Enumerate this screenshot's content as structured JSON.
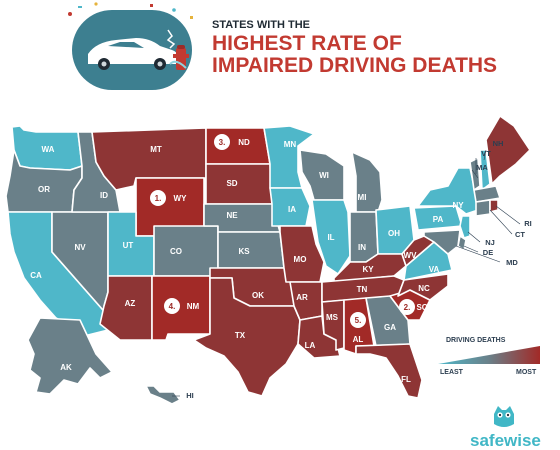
{
  "header": {
    "kicker": "STATES WITH THE",
    "title_line1": "HIGHEST RATE OF",
    "title_line2": "IMPAIRED DRIVING DEATHS"
  },
  "legend": {
    "title": "DRIVING DEATHS",
    "low": "LEAST",
    "high": "MOST",
    "low_color": "#4fb7c9",
    "high_color": "#a22a27"
  },
  "brand": {
    "name": "safewise"
  },
  "colors": {
    "teal": "#4fb7c9",
    "slate": "#6a8089",
    "maroon": "#8e3535",
    "red": "#a22a27",
    "title_red": "#c23a31"
  },
  "top5": [
    {
      "rank": "1.",
      "state": "WY"
    },
    {
      "rank": "2.",
      "state": "SC"
    },
    {
      "rank": "3.",
      "state": "ND"
    },
    {
      "rank": "4.",
      "state": "NM"
    },
    {
      "rank": "5.",
      "state": "AL"
    }
  ],
  "map_labels": {
    "WA": "WA",
    "OR": "OR",
    "CA": "CA",
    "NV": "NV",
    "ID": "ID",
    "MT": "MT",
    "WY": "WY",
    "UT": "UT",
    "CO": "CO",
    "AZ": "AZ",
    "NM": "NM",
    "ND": "ND",
    "SD": "SD",
    "NE": "NE",
    "KS": "KS",
    "OK": "OK",
    "TX": "TX",
    "MN": "MN",
    "IA": "IA",
    "MO": "MO",
    "AR": "AR",
    "LA": "LA",
    "WI": "WI",
    "IL": "IL",
    "MI": "MI",
    "IN": "IN",
    "OH": "OH",
    "KY": "KY",
    "TN": "TN",
    "MS": "MS",
    "AL": "AL",
    "GA": "GA",
    "FL": "FL",
    "SC": "SC",
    "NC": "NC",
    "VA": "VA",
    "WV": "WV",
    "PA": "PA",
    "NY": "NY",
    "ME": "ME",
    "VT": "VT",
    "NH": "NH",
    "MA": "MA",
    "RI": "RI",
    "CT": "CT",
    "NJ": "NJ",
    "DE": "DE",
    "MD": "MD",
    "AK": "AK",
    "HI": "HI"
  }
}
